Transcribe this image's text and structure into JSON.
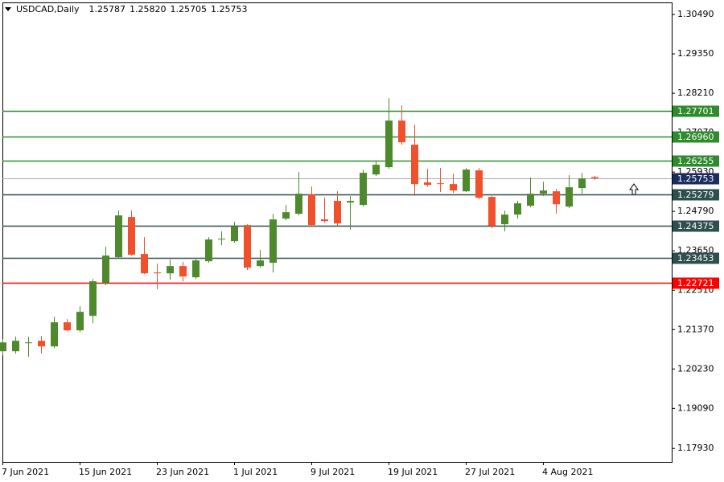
{
  "chart_data": {
    "type": "candlestick",
    "title": "USDCAD,Daily",
    "last_bar_labels": [
      "1.25787",
      "1.25820",
      "1.25705",
      "1.25753"
    ],
    "categories": [
      "7 Jun 2021",
      null,
      null,
      null,
      null,
      null,
      "15 Jun 2021",
      null,
      null,
      null,
      null,
      null,
      "23 Jun 2021",
      null,
      null,
      null,
      null,
      null,
      "1 Jul 2021",
      null,
      null,
      null,
      null,
      null,
      "9 Jul 2021",
      null,
      null,
      null,
      null,
      null,
      "19 Jul 2021",
      null,
      null,
      null,
      null,
      null,
      "27 Jul 2021",
      null,
      null,
      null,
      null,
      null,
      "4 Aug 2021",
      null,
      null,
      null,
      null
    ],
    "open": [
      1.20744,
      1.20744,
      1.20977,
      1.21046,
      1.20884,
      1.21581,
      1.21349,
      1.21768,
      1.22721,
      1.23465,
      1.24628,
      1.23559,
      1.23023,
      1.22999,
      1.2321,
      1.22884,
      1.23349,
      1.23977,
      1.23931,
      1.24396,
      1.2321,
      1.23303,
      1.24582,
      1.24722,
      1.2528,
      1.24559,
      1.25094,
      1.25047,
      1.24977,
      1.25861,
      1.26071,
      1.2742,
      1.26722,
      1.25629,
      1.25605,
      1.25582,
      1.25373,
      1.25978,
      1.2521,
      1.24419,
      1.24699,
      1.24954,
      1.25303,
      1.25373,
      1.24931,
      1.25466,
      1.25787
    ],
    "high": [
      1.21093,
      1.21163,
      1.21163,
      1.21186,
      1.21744,
      1.21674,
      1.22047,
      1.22837,
      1.23768,
      1.24815,
      1.24815,
      1.24047,
      1.23279,
      1.23396,
      1.23326,
      1.23442,
      1.24047,
      1.2421,
      1.24489,
      1.24419,
      1.23675,
      1.24722,
      1.24977,
      1.25931,
      1.25512,
      1.25187,
      1.25373,
      1.25233,
      1.26001,
      1.26257,
      1.28071,
      1.27862,
      1.27303,
      1.26024,
      1.26047,
      1.25885,
      1.26047,
      1.26047,
      1.25233,
      1.24815,
      1.25094,
      1.25768,
      1.25652,
      1.25443,
      1.25838,
      1.25908,
      1.2582
    ],
    "low": [
      1.20628,
      1.20674,
      1.20581,
      1.20674,
      1.20837,
      1.21326,
      1.21302,
      1.21558,
      1.22652,
      1.23419,
      1.23512,
      1.22977,
      1.22535,
      1.22814,
      1.22768,
      1.22837,
      1.23303,
      1.23814,
      1.23884,
      1.23093,
      1.23163,
      1.23023,
      1.24535,
      1.24675,
      1.24373,
      1.24466,
      1.24373,
      1.24257,
      1.24931,
      1.25815,
      1.26024,
      1.26722,
      1.2528,
      1.25512,
      1.2535,
      1.25326,
      1.2535,
      1.2514,
      1.24303,
      1.2421,
      1.24582,
      1.24908,
      1.25233,
      1.24722,
      1.24885,
      1.25303,
      1.25705
    ],
    "close": [
      1.21,
      1.21046,
      1.21,
      1.20884,
      1.21581,
      1.21349,
      1.21884,
      1.22768,
      1.23512,
      1.24675,
      1.23535,
      1.22999,
      1.22999,
      1.2321,
      1.22907,
      1.23372,
      1.23977,
      1.24,
      1.24349,
      1.23163,
      1.23372,
      1.24559,
      1.24768,
      1.25303,
      1.24396,
      1.24512,
      1.24442,
      1.25094,
      1.25908,
      1.2614,
      1.2742,
      1.26792,
      1.25582,
      1.25559,
      1.25582,
      1.25396,
      1.26001,
      1.25187,
      1.24373,
      1.24699,
      1.25024,
      1.25303,
      1.25396,
      1.24999,
      1.2549,
      1.25745,
      1.25753
    ],
    "up_color": "#4e8a2c",
    "down_color": "#f0502a",
    "ylim": [
      1.1754,
      1.3084
    ],
    "yticks": [
      {
        "value": 1.3049,
        "label": "1.30490"
      },
      {
        "value": 1.2935,
        "label": "1.29350"
      },
      {
        "value": 1.2821,
        "label": "1.28210"
      },
      {
        "value": 1.2707,
        "label": "1.27070"
      },
      {
        "value": 1.2593,
        "label": "1.25930"
      },
      {
        "value": 1.2479,
        "label": "1.24790"
      },
      {
        "value": 1.2365,
        "label": "1.23650"
      },
      {
        "value": 1.2251,
        "label": "1.22510"
      },
      {
        "value": 1.2137,
        "label": "1.21370"
      },
      {
        "value": 1.2023,
        "label": "1.20230"
      },
      {
        "value": 1.1909,
        "label": "1.19090"
      },
      {
        "value": 1.1793,
        "label": "1.17930"
      }
    ],
    "levels": [
      {
        "value": 1.27701,
        "color": "#2e8b2e"
      },
      {
        "value": 1.2696,
        "label": "1.26960",
        "color": "#2e8b2e"
      },
      {
        "value": 1.26255,
        "color": "#2e8b2e"
      },
      {
        "value": 1.25753,
        "color": "#1c2c5c"
      },
      {
        "value": 1.25279,
        "color": "#2f4f4f"
      },
      {
        "value": 1.24375,
        "color": "#2f4f4f"
      },
      {
        "value": 1.23453,
        "color": "#2f4f4f"
      },
      {
        "value": 1.22721,
        "color": "#ff0000"
      }
    ]
  }
}
